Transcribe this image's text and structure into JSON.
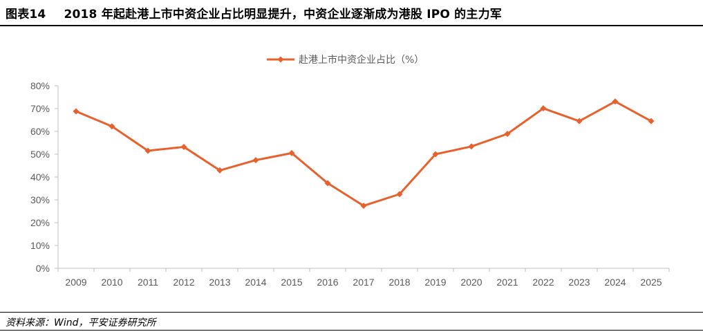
{
  "header": {
    "figure_label": "图表14",
    "title": "2018 年起赴港上市中资企业占比明显提升，中资企业逐渐成为港股 IPO 的主力军"
  },
  "footer": {
    "source": "资料来源：Wind，平安证券研究所"
  },
  "chart_data": {
    "type": "line",
    "title": "",
    "xlabel": "",
    "ylabel": "",
    "categories": [
      "2009",
      "2010",
      "2011",
      "2012",
      "2013",
      "2014",
      "2015",
      "2016",
      "2017",
      "2018",
      "2019",
      "2020",
      "2021",
      "2022",
      "2023",
      "2024",
      "2025"
    ],
    "series": [
      {
        "name": "赴港上市中资企业占比（%）",
        "color": "#E8602C",
        "marker": "diamond",
        "values": [
          68.8,
          62.2,
          51.5,
          53.2,
          42.9,
          47.4,
          50.5,
          37.3,
          27.4,
          32.5,
          50.0,
          53.4,
          58.9,
          70.1,
          64.5,
          73.1,
          64.5
        ]
      }
    ],
    "ylim": [
      0,
      80
    ],
    "yticks": [
      "0%",
      "10%",
      "20%",
      "30%",
      "40%",
      "50%",
      "60%",
      "70%",
      "80%"
    ],
    "grid": false,
    "legend": "top-center"
  }
}
